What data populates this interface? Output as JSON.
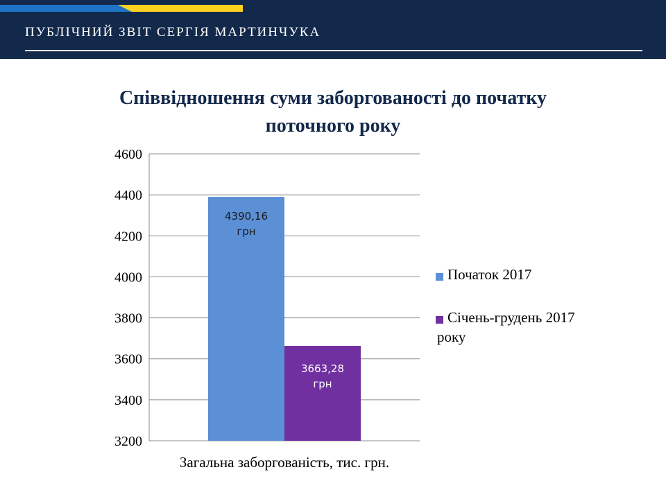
{
  "header": {
    "title": "ПУБЛІЧНИЙ ЗВІТ СЕРГІЯ МАРТИНЧУКА"
  },
  "colors": {
    "header_bg": "#13294b",
    "flag_blue": "#1f73c6",
    "flag_yellow": "#ffd21f",
    "series_1": "#5b8fd6",
    "series_2": "#7030a0"
  },
  "chart_data": {
    "type": "bar",
    "title_lines": [
      "Співвідношення суми заборгованості до початку",
      "поточного року"
    ],
    "categories": [
      "Загальна заборгованість, тис. грн."
    ],
    "series": [
      {
        "name": "Початок 2017",
        "values": [
          4390.16
        ],
        "label": "4390,16 грн"
      },
      {
        "name": "Січень-грудень 2017 року",
        "values": [
          3663.28
        ],
        "label": "3663,28 грн"
      }
    ],
    "ylim": [
      3200,
      4600
    ],
    "yticks": [
      3200,
      3400,
      3600,
      3800,
      4000,
      4200,
      4400,
      4600
    ],
    "grid": true,
    "legend": "right"
  }
}
